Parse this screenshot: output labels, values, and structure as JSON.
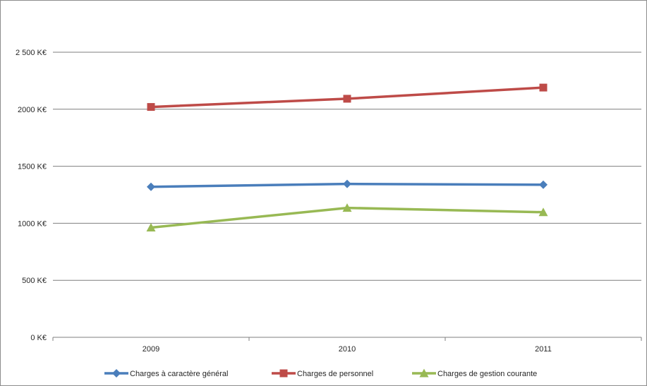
{
  "chart_data": {
    "type": "line",
    "categories": [
      "2009",
      "2010",
      "2011"
    ],
    "ylim": [
      0,
      2750
    ],
    "yticks": [
      0,
      500,
      1000,
      1500,
      2000,
      2500
    ],
    "ytick_labels": [
      "0 K€",
      "500 K€",
      "1000 K€",
      "1500 K€",
      "2000 K€",
      "2 500 K€"
    ],
    "grid": "horizontal",
    "legend_position": "bottom",
    "series": [
      {
        "name": "Charges à caractère général",
        "values": [
          1320,
          1345,
          1338
        ],
        "color": "#4a7ebb",
        "marker": "diamond"
      },
      {
        "name": "Charges de personnel",
        "values": [
          2020,
          2092,
          2190
        ],
        "color": "#be4b48",
        "marker": "square"
      },
      {
        "name": "Charges de gestion courante",
        "values": [
          962,
          1135,
          1097
        ],
        "color": "#98b954",
        "marker": "triangle"
      }
    ]
  }
}
